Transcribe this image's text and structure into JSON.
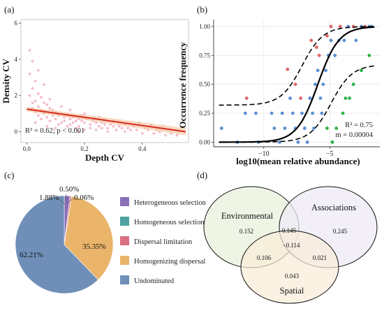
{
  "panel_labels": {
    "a": "(a)",
    "b": "(b)",
    "c": "(c)",
    "d": "(d)"
  },
  "panel_a": {
    "xlabel": "Depth CV",
    "ylabel": "Density CV",
    "xticks": [
      "0.0",
      "0.2",
      "0.4"
    ],
    "yticks": [
      "0",
      "2",
      "4",
      "6"
    ],
    "annotation": "R² = 0.62; p < 0.001",
    "point_color": "#f4b6c6",
    "line_color": "#d62a1f",
    "band_color": "#f6c9a6"
  },
  "panel_b": {
    "xlabel": "log10(mean relative abundance)",
    "ylabel": "Occurrence frequency",
    "xticks": [
      "−10",
      "−5"
    ],
    "yticks": [
      "0.00",
      "0.25",
      "0.50",
      "0.75",
      "1.00"
    ],
    "annotation_r2": "R² = 0.75",
    "annotation_m": "m = 0.00004",
    "colors": {
      "above": "#e06666",
      "neutral": "#5b8fd6",
      "below": "#2fb34a"
    }
  },
  "chart_data": [
    {
      "type": "scatter",
      "xlabel": "Depth CV",
      "ylabel": "Density CV",
      "xlim": [
        -0.02,
        0.56
      ],
      "ylim": [
        -0.6,
        6.2
      ],
      "annotation": "R² = 0.62; p < 0.001",
      "fit_line": {
        "x": [
          0.0,
          0.55
        ],
        "y": [
          1.25,
          0.0
        ]
      },
      "points": [
        [
          0.01,
          4.5
        ],
        [
          0.02,
          3.9
        ],
        [
          0.01,
          3.2
        ],
        [
          0.03,
          2.8
        ],
        [
          0.02,
          2.4
        ],
        [
          0.04,
          2.1
        ],
        [
          0.01,
          2.0
        ],
        [
          0.05,
          1.9
        ],
        [
          0.03,
          1.7
        ],
        [
          0.02,
          1.6
        ],
        [
          0.06,
          1.6
        ],
        [
          0.04,
          1.4
        ],
        [
          0.07,
          1.5
        ],
        [
          0.05,
          1.2
        ],
        [
          0.08,
          1.3
        ],
        [
          0.03,
          1.1
        ],
        [
          0.09,
          1.2
        ],
        [
          0.06,
          1.0
        ],
        [
          0.1,
          1.1
        ],
        [
          0.11,
          0.9
        ],
        [
          0.12,
          1.0
        ],
        [
          0.07,
          0.8
        ],
        [
          0.13,
          0.8
        ],
        [
          0.14,
          0.9
        ],
        [
          0.15,
          0.7
        ],
        [
          0.1,
          0.7
        ],
        [
          0.16,
          0.8
        ],
        [
          0.17,
          0.6
        ],
        [
          0.18,
          0.7
        ],
        [
          0.12,
          0.5
        ],
        [
          0.19,
          0.6
        ],
        [
          0.2,
          0.5
        ],
        [
          0.21,
          0.7
        ],
        [
          0.22,
          0.4
        ],
        [
          0.23,
          0.6
        ],
        [
          0.15,
          0.4
        ],
        [
          0.24,
          0.5
        ],
        [
          0.25,
          0.3
        ],
        [
          0.26,
          0.5
        ],
        [
          0.18,
          0.3
        ],
        [
          0.27,
          0.4
        ],
        [
          0.28,
          0.2
        ],
        [
          0.29,
          0.4
        ],
        [
          0.3,
          0.3
        ],
        [
          0.31,
          0.1
        ],
        [
          0.32,
          0.3
        ],
        [
          0.22,
          0.2
        ],
        [
          0.33,
          0.2
        ],
        [
          0.34,
          0.0
        ],
        [
          0.35,
          0.2
        ],
        [
          0.36,
          0.1
        ],
        [
          0.28,
          0.0
        ],
        [
          0.38,
          0.1
        ],
        [
          0.4,
          -0.1
        ],
        [
          0.42,
          0.1
        ],
        [
          0.44,
          -0.1
        ],
        [
          0.46,
          0.0
        ],
        [
          0.48,
          -0.2
        ],
        [
          0.5,
          -0.1
        ],
        [
          0.52,
          -0.2
        ],
        [
          0.04,
          0.9
        ],
        [
          0.08,
          0.6
        ],
        [
          0.11,
          0.4
        ],
        [
          0.14,
          0.3
        ],
        [
          0.17,
          0.2
        ],
        [
          0.2,
          0.1
        ],
        [
          0.24,
          0.1
        ],
        [
          0.02,
          1.3
        ],
        [
          0.05,
          0.7
        ],
        [
          0.09,
          0.9
        ],
        [
          0.13,
          0.6
        ],
        [
          0.16,
          0.5
        ],
        [
          0.19,
          0.9
        ],
        [
          0.23,
          0.8
        ],
        [
          0.26,
          0.2
        ],
        [
          0.3,
          0.6
        ],
        [
          0.34,
          0.4
        ],
        [
          0.37,
          0.3
        ],
        [
          0.41,
          0.2
        ],
        [
          0.45,
          0.1
        ],
        [
          0.06,
          2.6
        ],
        [
          0.04,
          3.4
        ],
        [
          0.08,
          1.8
        ],
        [
          0.12,
          1.4
        ],
        [
          0.15,
          1.2
        ],
        [
          0.2,
          1.0
        ],
        [
          0.25,
          0.8
        ],
        [
          0.07,
          0.3
        ],
        [
          0.1,
          0.2
        ],
        [
          0.03,
          0.5
        ],
        [
          0.18,
          0.0
        ],
        [
          0.27,
          0.7
        ],
        [
          0.32,
          0.6
        ],
        [
          0.39,
          0.5
        ],
        [
          0.43,
          0.4
        ],
        [
          0.47,
          0.3
        ]
      ]
    },
    {
      "type": "scatter",
      "xlabel": "log10(mean relative abundance)",
      "ylabel": "Occurrence frequency",
      "xlim": [
        -13.8,
        -1.2
      ],
      "ylim": [
        -0.04,
        1.06
      ],
      "annotation": "R² = 0.75; m = 0.00004",
      "series": [
        {
          "name": "above",
          "color": "#e06666",
          "points": [
            [
              -11.3,
              0.38
            ],
            [
              -8.2,
              0.63
            ],
            [
              -7.6,
              0.5
            ],
            [
              -7.2,
              0.38
            ],
            [
              -6.4,
              0.88
            ],
            [
              -6.0,
              0.82
            ],
            [
              -5.8,
              0.75
            ],
            [
              -5.2,
              0.92
            ],
            [
              -4.2,
              1.0
            ],
            [
              -4.9,
              1.0
            ],
            [
              -3.2,
              1.0
            ],
            [
              -2.3,
              1.0
            ]
          ]
        },
        {
          "name": "neutral",
          "color": "#5b8fd6",
          "points": [
            [
              -13.2,
              0.12
            ],
            [
              -12.0,
              0.0
            ],
            [
              -11.4,
              0.25
            ],
            [
              -10.6,
              0.25
            ],
            [
              -10.4,
              0.0
            ],
            [
              -9.4,
              0.25
            ],
            [
              -9.2,
              0.12
            ],
            [
              -8.8,
              0.0
            ],
            [
              -8.6,
              0.25
            ],
            [
              -8.4,
              0.12
            ],
            [
              -7.8,
              0.25
            ],
            [
              -7.6,
              0.12
            ],
            [
              -7.4,
              0.0
            ],
            [
              -7.1,
              0.25
            ],
            [
              -6.9,
              0.12
            ],
            [
              -6.7,
              0.0
            ],
            [
              -6.5,
              0.38
            ],
            [
              -6.3,
              0.25
            ],
            [
              -6.1,
              0.5
            ],
            [
              -5.9,
              0.62
            ],
            [
              -5.7,
              0.38
            ],
            [
              -5.5,
              0.5
            ],
            [
              -5.3,
              0.62
            ],
            [
              -5.1,
              0.75
            ],
            [
              -4.9,
              0.88
            ],
            [
              -4.6,
              0.75
            ],
            [
              -4.3,
              0.88
            ],
            [
              -3.9,
              0.88
            ],
            [
              -3.6,
              1.0
            ],
            [
              -3.0,
              0.88
            ],
            [
              -2.6,
              1.0
            ],
            [
              -2.0,
              1.0
            ],
            [
              -1.8,
              1.0
            ],
            [
              -8.0,
              0.38
            ],
            [
              -5.6,
              0.25
            ],
            [
              -6.2,
              0.12
            ]
          ]
        },
        {
          "name": "below",
          "color": "#2fb34a",
          "points": [
            [
              -5.2,
              0.12
            ],
            [
              -4.8,
              0.0
            ],
            [
              -4.5,
              0.12
            ],
            [
              -4.0,
              0.25
            ],
            [
              -3.8,
              0.38
            ],
            [
              -3.5,
              0.38
            ],
            [
              -3.2,
              0.5
            ],
            [
              -2.6,
              0.62
            ],
            [
              -2.0,
              0.75
            ]
          ]
        }
      ],
      "fit": {
        "type": "logistic",
        "center": -5.9,
        "steepness": 1.25
      }
    },
    {
      "type": "pie",
      "labels": [
        "Heterogeneous selection",
        "Homogeneous selection",
        "Dispersal limitation",
        "Homogenizing dispersal",
        "Undominated"
      ],
      "values": [
        1.88,
        0.06,
        0.5,
        35.35,
        62.21
      ],
      "display": [
        "1.88%",
        "0.06%",
        "0.50%",
        "35.35%",
        "62.21%"
      ],
      "colors": [
        "#8a6fb8",
        "#4fa1a1",
        "#d97080",
        "#eab46a",
        "#6f8fb8"
      ]
    }
  ],
  "panel_d": {
    "circles": [
      {
        "label": "Environmental",
        "value": "0.152",
        "fill": "#e8f2dc"
      },
      {
        "label": "Associations",
        "value": "0.245",
        "fill": "#eeeaf5"
      },
      {
        "label": "Spatial",
        "value": "0.043",
        "fill": "#f9ecd8"
      }
    ],
    "overlaps": {
      "env_assoc": "0.145",
      "env_spatial": "0.106",
      "assoc_spatial": "0.021",
      "all": "−0.114"
    }
  }
}
